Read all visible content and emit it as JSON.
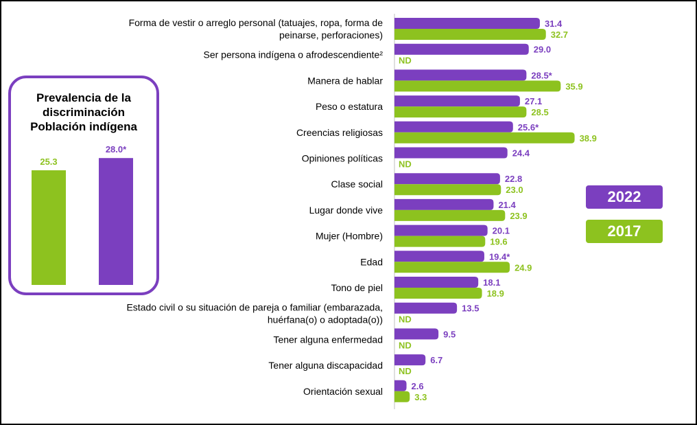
{
  "colors": {
    "y2022": "#7B3FBF",
    "y2017": "#8DC21F",
    "axis": "#bfbfbf"
  },
  "legend": {
    "y2022": "2022",
    "y2017": "2017"
  },
  "inset": {
    "title_lines": [
      "Prevalencia de la",
      "discriminación",
      "Población indígena"
    ],
    "chart_data": {
      "type": "bar",
      "categories": [
        "2017",
        "2022"
      ],
      "values": [
        25.3,
        28.0
      ],
      "labels": [
        "25.3",
        "28.0*"
      ]
    }
  },
  "chart_data": {
    "type": "bar",
    "orientation": "horizontal",
    "categories": [
      [
        "Forma de vestir o arreglo personal (tatuajes, ropa, forma de",
        "peinarse, perforaciones)"
      ],
      [
        "Ser persona indígena o afrodescendiente²"
      ],
      [
        "Manera de hablar"
      ],
      [
        "Peso o estatura"
      ],
      [
        "Creencias religiosas"
      ],
      [
        "Opiniones políticas"
      ],
      [
        "Clase social"
      ],
      [
        "Lugar donde vive"
      ],
      [
        "Mujer (Hombre)"
      ],
      [
        "Edad"
      ],
      [
        "Tono de piel"
      ],
      [
        "Estado civil o su situación de pareja o familiar (embarazada,",
        "huérfana(o) o adoptada(o))"
      ],
      [
        "Tener alguna enfermedad"
      ],
      [
        "Tener alguna discapacidad"
      ],
      [
        "Orientación sexual"
      ]
    ],
    "series": [
      {
        "name": "2022",
        "values": [
          31.4,
          29.0,
          28.5,
          27.1,
          25.6,
          24.4,
          22.8,
          21.4,
          20.1,
          19.4,
          18.1,
          13.5,
          9.5,
          6.7,
          2.6
        ],
        "labels": [
          "31.4",
          "29.0",
          "28.5*",
          "27.1",
          "25.6*",
          "24.4",
          "22.8",
          "21.4",
          "20.1",
          "19.4*",
          "18.1",
          "13.5",
          "9.5",
          "6.7",
          "2.6"
        ]
      },
      {
        "name": "2017",
        "values": [
          32.7,
          null,
          35.9,
          28.5,
          38.9,
          null,
          23.0,
          23.9,
          19.6,
          24.9,
          18.9,
          null,
          null,
          null,
          3.3
        ],
        "labels": [
          "32.7",
          "ND",
          "35.9",
          "28.5",
          "38.9",
          "ND",
          "23.0",
          "23.9",
          "19.6",
          "24.9",
          "18.9",
          "ND",
          "ND",
          "ND",
          "3.3"
        ]
      }
    ]
  }
}
